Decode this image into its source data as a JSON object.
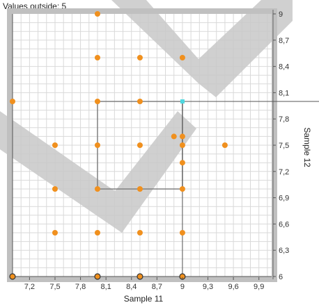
{
  "status": {
    "values_outside_label": "Values outside: 5"
  },
  "chart_data": {
    "type": "scatter",
    "title": "",
    "xlabel": "Sample 11",
    "ylabel": "Sample 12",
    "xlim": [
      7.0,
      10.05
    ],
    "ylim": [
      6.0,
      9.0
    ],
    "x_ticks": [
      "7,2",
      "7,5",
      "7,8",
      "8,1",
      "8,4",
      "8,7",
      "9",
      "9,3",
      "9,6",
      "9,9"
    ],
    "y_ticks": [
      "6",
      "6,3",
      "6,6",
      "6,9",
      "7,2",
      "7,5",
      "7,8",
      "8,1",
      "8,4",
      "8,7",
      "9"
    ],
    "grid": true,
    "series": [
      {
        "color": "#f0901e",
        "points": [
          {
            "x": 8.0,
            "y": 9.0
          },
          {
            "x": 8.0,
            "y": 8.5
          },
          {
            "x": 8.5,
            "y": 8.5
          },
          {
            "x": 9.0,
            "y": 8.5
          },
          {
            "x": 7.0,
            "y": 8.0
          },
          {
            "x": 8.0,
            "y": 8.0
          },
          {
            "x": 8.5,
            "y": 8.0
          },
          {
            "x": 7.5,
            "y": 7.5
          },
          {
            "x": 8.0,
            "y": 7.5
          },
          {
            "x": 8.5,
            "y": 7.5
          },
          {
            "x": 8.9,
            "y": 7.6
          },
          {
            "x": 9.0,
            "y": 7.6
          },
          {
            "x": 9.0,
            "y": 7.5
          },
          {
            "x": 9.0,
            "y": 7.3
          },
          {
            "x": 9.5,
            "y": 7.5
          },
          {
            "x": 7.5,
            "y": 7.0
          },
          {
            "x": 8.0,
            "y": 7.0
          },
          {
            "x": 8.5,
            "y": 7.0
          },
          {
            "x": 9.0,
            "y": 7.0
          },
          {
            "x": 7.5,
            "y": 6.5
          },
          {
            "x": 8.0,
            "y": 6.5
          },
          {
            "x": 8.5,
            "y": 6.5
          },
          {
            "x": 9.0,
            "y": 6.5
          },
          {
            "x": 7.0,
            "y": 6.0
          },
          {
            "x": 8.0,
            "y": 6.0
          },
          {
            "x": 8.5,
            "y": 6.0
          },
          {
            "x": 9.0,
            "y": 6.0
          }
        ]
      }
    ],
    "selected_point": {
      "x": 9.0,
      "y": 8.0,
      "color": "#4fd8e0"
    },
    "selection_box": {
      "x": [
        8.0,
        9.0
      ],
      "y": [
        7.0,
        8.0
      ]
    },
    "crosshair": {
      "x": 9.0,
      "y": 8.0
    },
    "colors": {
      "frame": "#c0c0c0",
      "grid": "#d9d9d9",
      "point": "#f0901e",
      "watermark": "#c8c8c8",
      "box": "#808080"
    }
  }
}
